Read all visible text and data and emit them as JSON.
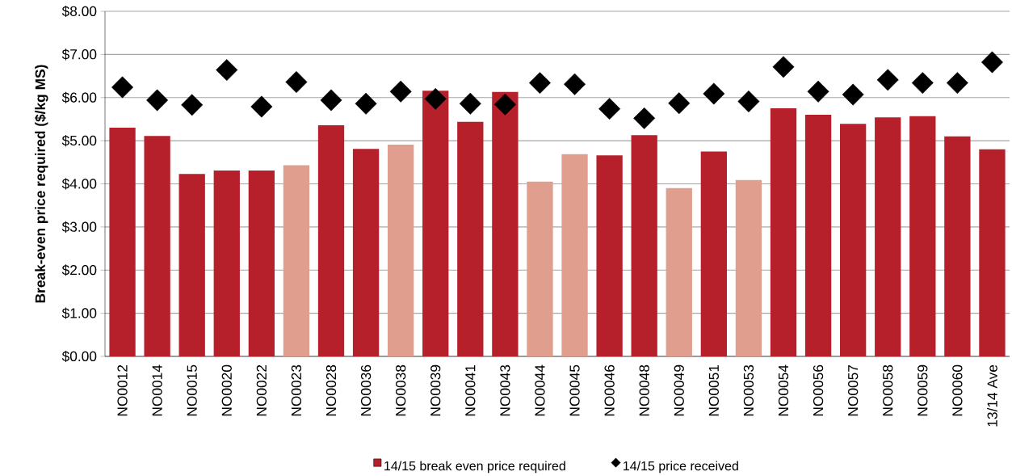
{
  "chart_data": {
    "type": "bar",
    "ylabel": "Break-even price required ($/kg MS)",
    "categories": [
      "NO0012",
      "NO0014",
      "NO0015",
      "NO0020",
      "NO0022",
      "NO0023",
      "NO0028",
      "NO0036",
      "NO0038",
      "NO0039",
      "NO0041",
      "NO0043",
      "NO0044",
      "NO0045",
      "NO0046",
      "NO0048",
      "NO0049",
      "NO0051",
      "NO0053",
      "NO0054",
      "NO0056",
      "NO0057",
      "NO0058",
      "NO0059",
      "NO0060",
      "13/14 Ave"
    ],
    "series": [
      {
        "name": "14/15 break even price required",
        "color": "#b5202a",
        "colors": [
          "#b5202a",
          "#b5202a",
          "#b5202a",
          "#b5202a",
          "#b5202a",
          "#e09e8f",
          "#b5202a",
          "#b5202a",
          "#e09e8f",
          "#b5202a",
          "#b5202a",
          "#b5202a",
          "#e09e8f",
          "#e09e8f",
          "#b5202a",
          "#b5202a",
          "#e09e8f",
          "#b5202a",
          "#e09e8f",
          "#b5202a",
          "#b5202a",
          "#b5202a",
          "#b5202a",
          "#b5202a",
          "#b5202a",
          "#b5202a"
        ],
        "values": [
          5.3,
          5.11,
          4.23,
          4.31,
          4.31,
          4.43,
          5.36,
          4.81,
          4.91,
          6.16,
          5.44,
          6.13,
          4.05,
          4.69,
          4.66,
          5.13,
          3.9,
          4.75,
          4.09,
          5.75,
          5.6,
          5.39,
          5.54,
          5.57,
          5.1,
          4.8
        ]
      },
      {
        "name": "14/15 price received",
        "type": "scatter",
        "color": "#000000",
        "marker": "diamond",
        "values": [
          6.24,
          5.94,
          5.83,
          6.64,
          5.79,
          6.36,
          5.94,
          5.86,
          6.14,
          5.97,
          5.86,
          5.84,
          6.34,
          6.31,
          5.74,
          5.52,
          5.87,
          6.09,
          5.91,
          6.71,
          6.14,
          6.07,
          6.41,
          6.34,
          6.34,
          6.82
        ]
      }
    ],
    "ylim": [
      0,
      8
    ],
    "yticks": [
      {
        "value": 0,
        "label": "$0.00"
      },
      {
        "value": 1,
        "label": "$1.00"
      },
      {
        "value": 2,
        "label": "$2.00"
      },
      {
        "value": 3,
        "label": "$3.00"
      },
      {
        "value": 4,
        "label": "$4.00"
      },
      {
        "value": 5,
        "label": "$5.00"
      },
      {
        "value": 6,
        "label": "$6.00"
      },
      {
        "value": 7,
        "label": "$7.00"
      },
      {
        "value": 8,
        "label": "$8.00"
      }
    ],
    "grid": "y",
    "legend": "bottom"
  }
}
